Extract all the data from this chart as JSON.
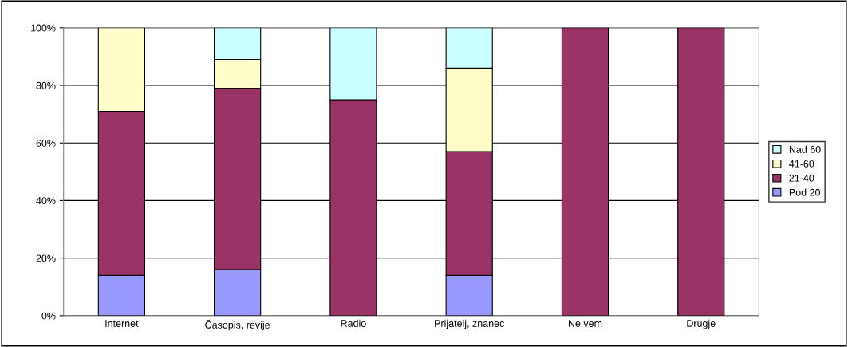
{
  "chart_data": {
    "type": "bar",
    "stacked": true,
    "categories": [
      "Internet",
      "Časopis, revije",
      "Radio",
      "Prijatelj, znanec",
      "Ne vem",
      "Drugje"
    ],
    "series": [
      {
        "name": "Pod 20",
        "color": "#9999ff",
        "values": [
          14,
          16,
          0,
          14,
          0,
          0
        ]
      },
      {
        "name": "21-40",
        "color": "#993366",
        "values": [
          57,
          63,
          75,
          43,
          100,
          100
        ]
      },
      {
        "name": "41-60",
        "color": "#ffffcc",
        "values": [
          29,
          10,
          0,
          29,
          0,
          0
        ]
      },
      {
        "name": "Nad 60",
        "color": "#ccffff",
        "values": [
          0,
          11,
          25,
          14,
          0,
          0
        ]
      }
    ],
    "ylim": [
      0,
      100
    ],
    "yticks": [
      {
        "value": 0,
        "label": "0%"
      },
      {
        "value": 20,
        "label": "20%"
      },
      {
        "value": 40,
        "label": "40%"
      },
      {
        "value": 60,
        "label": "60%"
      },
      {
        "value": 80,
        "label": "80%"
      },
      {
        "value": 100,
        "label": "100%"
      }
    ],
    "grid": "y",
    "legend": "right"
  }
}
